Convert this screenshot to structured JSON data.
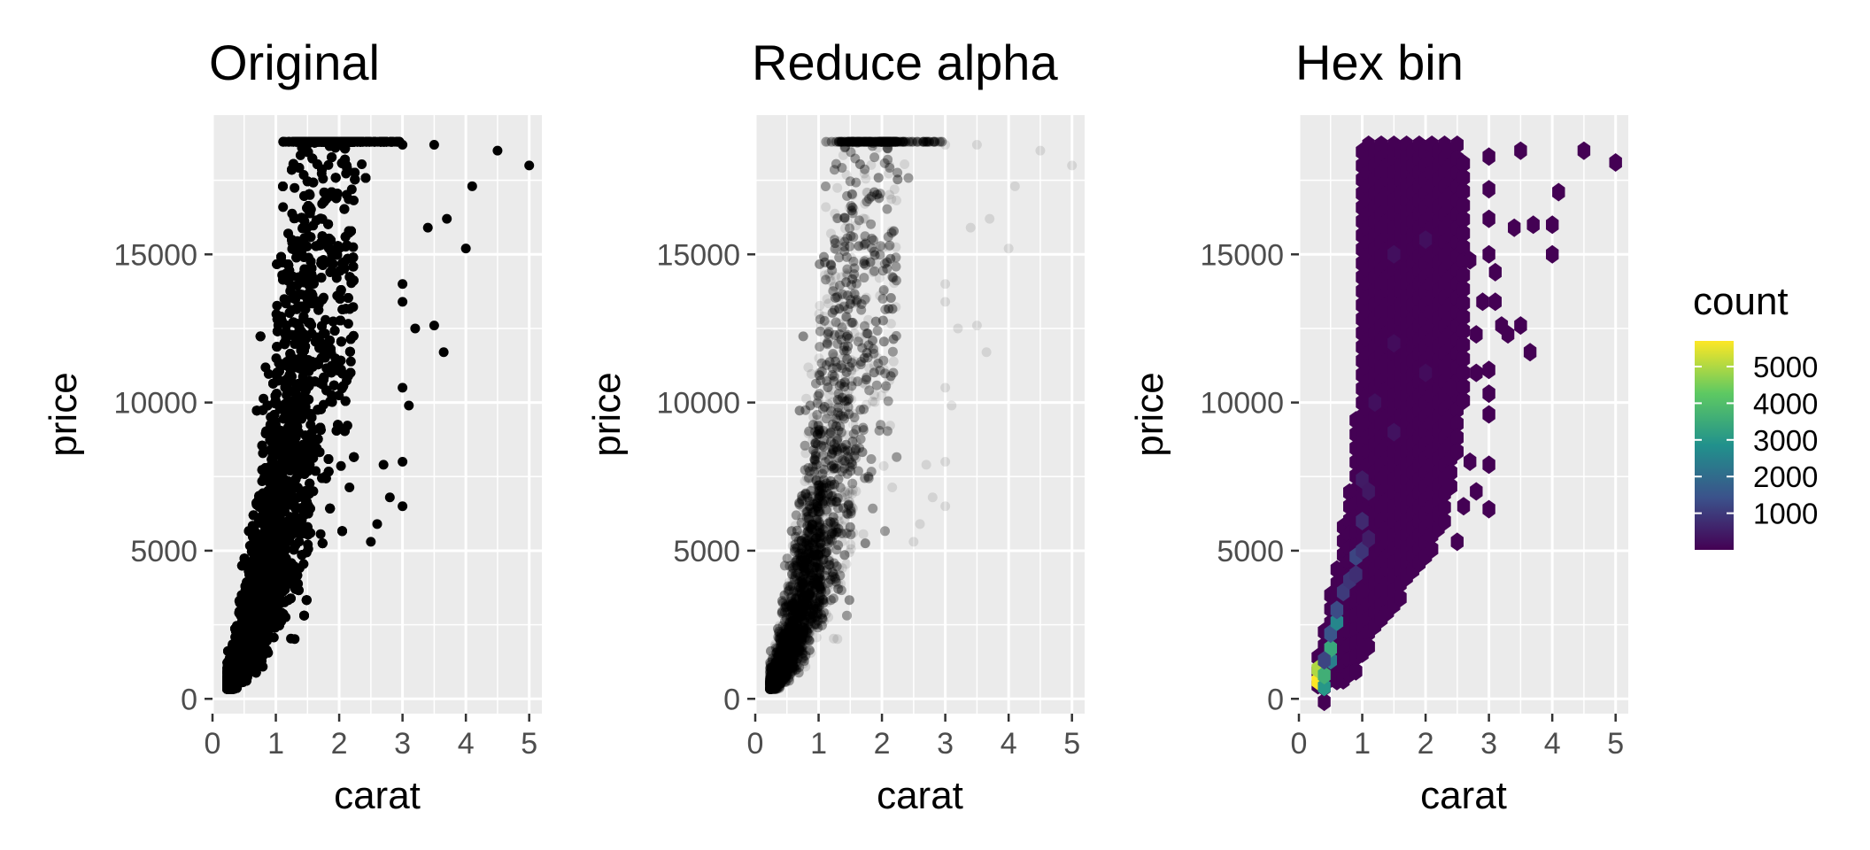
{
  "chart_data": [
    {
      "type": "scatter",
      "title": "Original",
      "xlabel": "carat",
      "ylabel": "price",
      "xlim": [
        0,
        5.2
      ],
      "ylim": [
        -500,
        19700
      ],
      "xticks": [
        0,
        1,
        2,
        3,
        4,
        5
      ],
      "yticks": [
        0,
        5000,
        10000,
        15000
      ],
      "grid": true,
      "point_color": "#000000",
      "point_alpha": 1.0,
      "outliers": [
        {
          "x": 3.0,
          "y": 18700
        },
        {
          "x": 3.5,
          "y": 18700
        },
        {
          "x": 4.5,
          "y": 18500
        },
        {
          "x": 5.0,
          "y": 18000
        },
        {
          "x": 4.1,
          "y": 17300
        },
        {
          "x": 3.7,
          "y": 16200
        },
        {
          "x": 3.4,
          "y": 15900
        },
        {
          "x": 4.0,
          "y": 15200
        },
        {
          "x": 3.0,
          "y": 14000
        },
        {
          "x": 3.0,
          "y": 13400
        },
        {
          "x": 3.2,
          "y": 12500
        },
        {
          "x": 3.5,
          "y": 12600
        },
        {
          "x": 3.65,
          "y": 11700
        },
        {
          "x": 3.0,
          "y": 10500
        },
        {
          "x": 3.1,
          "y": 9900
        },
        {
          "x": 3.0,
          "y": 8000
        },
        {
          "x": 2.7,
          "y": 7900
        },
        {
          "x": 2.8,
          "y": 6800
        },
        {
          "x": 3.0,
          "y": 6500
        },
        {
          "x": 2.6,
          "y": 5900
        },
        {
          "x": 2.5,
          "y": 5300
        }
      ]
    },
    {
      "type": "scatter",
      "title": "Reduce alpha",
      "xlabel": "carat",
      "ylabel": "price",
      "xlim": [
        0,
        5.2
      ],
      "ylim": [
        -500,
        19700
      ],
      "xticks": [
        0,
        1,
        2,
        3,
        4,
        5
      ],
      "yticks": [
        0,
        5000,
        10000,
        15000
      ],
      "grid": true,
      "point_color": "#000000",
      "point_alpha": 0.1
    },
    {
      "type": "heatmap",
      "title": "Hex bin",
      "xlabel": "carat",
      "ylabel": "price",
      "xlim": [
        0,
        5.2
      ],
      "ylim": [
        -500,
        19700
      ],
      "xticks": [
        0,
        1,
        2,
        3,
        4,
        5
      ],
      "yticks": [
        0,
        5000,
        10000,
        15000
      ],
      "grid": true,
      "legend": {
        "title": "count",
        "position": "right",
        "min": 1,
        "max": 5700,
        "ticks": [
          1000,
          2000,
          3000,
          4000,
          5000
        ],
        "palette": [
          "#440154",
          "#3b528b",
          "#21918c",
          "#5ec962",
          "#fde725"
        ]
      },
      "hex_columns": [
        {
          "x": 0.3,
          "ymin": 100,
          "ymax": 1400
        },
        {
          "x": 0.4,
          "ymin": 0,
          "ymax": 2500
        },
        {
          "x": 0.5,
          "ymin": 300,
          "ymax": 3500
        },
        {
          "x": 0.6,
          "ymin": 400,
          "ymax": 4600
        },
        {
          "x": 0.7,
          "ymin": 500,
          "ymax": 5800
        },
        {
          "x": 0.8,
          "ymin": 700,
          "ymax": 7200
        },
        {
          "x": 0.9,
          "ymin": 900,
          "ymax": 9400
        },
        {
          "x": 1.0,
          "ymin": 1300,
          "ymax": 18700
        },
        {
          "x": 1.1,
          "ymin": 1600,
          "ymax": 18700
        },
        {
          "x": 1.2,
          "ymin": 2000,
          "ymax": 18700
        },
        {
          "x": 1.3,
          "ymin": 2300,
          "ymax": 18700
        },
        {
          "x": 1.4,
          "ymin": 2700,
          "ymax": 18700
        },
        {
          "x": 1.5,
          "ymin": 3000,
          "ymax": 18700
        },
        {
          "x": 1.6,
          "ymin": 3300,
          "ymax": 18700
        },
        {
          "x": 1.7,
          "ymin": 3700,
          "ymax": 18700
        },
        {
          "x": 1.8,
          "ymin": 4000,
          "ymax": 18700
        },
        {
          "x": 1.9,
          "ymin": 4300,
          "ymax": 18700
        },
        {
          "x": 2.0,
          "ymin": 4700,
          "ymax": 18700
        },
        {
          "x": 2.1,
          "ymin": 5000,
          "ymax": 18700
        },
        {
          "x": 2.2,
          "ymin": 5300,
          "ymax": 18700
        },
        {
          "x": 2.3,
          "ymin": 5800,
          "ymax": 18700
        },
        {
          "x": 2.4,
          "ymin": 6800,
          "ymax": 18700
        },
        {
          "x": 2.5,
          "ymin": 8000,
          "ymax": 18700
        },
        {
          "x": 2.6,
          "ymin": 9800,
          "ymax": 18300
        }
      ],
      "hex_points": [
        {
          "x": 2.5,
          "y": 5300
        },
        {
          "x": 2.6,
          "y": 6500
        },
        {
          "x": 2.8,
          "y": 7000
        },
        {
          "x": 2.7,
          "y": 8000
        },
        {
          "x": 3.0,
          "y": 7900
        },
        {
          "x": 3.0,
          "y": 6400
        },
        {
          "x": 2.4,
          "y": 10500
        },
        {
          "x": 2.8,
          "y": 11000
        },
        {
          "x": 3.0,
          "y": 9600
        },
        {
          "x": 2.7,
          "y": 14800
        },
        {
          "x": 2.8,
          "y": 12300
        },
        {
          "x": 3.0,
          "y": 10300
        },
        {
          "x": 3.0,
          "y": 11100
        },
        {
          "x": 2.9,
          "y": 13400
        },
        {
          "x": 3.1,
          "y": 13400
        },
        {
          "x": 3.2,
          "y": 12600
        },
        {
          "x": 3.3,
          "y": 12300
        },
        {
          "x": 3.5,
          "y": 12600
        },
        {
          "x": 3.65,
          "y": 11700
        },
        {
          "x": 3.0,
          "y": 15000
        },
        {
          "x": 3.1,
          "y": 14400
        },
        {
          "x": 3.0,
          "y": 16200
        },
        {
          "x": 3.4,
          "y": 15900
        },
        {
          "x": 3.7,
          "y": 16000
        },
        {
          "x": 4.0,
          "y": 16000
        },
        {
          "x": 4.0,
          "y": 15000
        },
        {
          "x": 4.1,
          "y": 17100
        },
        {
          "x": 3.0,
          "y": 18300
        },
        {
          "x": 3.5,
          "y": 18500
        },
        {
          "x": 4.5,
          "y": 18500
        },
        {
          "x": 5.0,
          "y": 18100
        },
        {
          "x": 3.0,
          "y": 17200
        },
        {
          "x": 0.4,
          "y": -100
        }
      ],
      "hex_hot": [
        {
          "x": 0.3,
          "y": 600,
          "count": 5700
        },
        {
          "x": 0.3,
          "y": 1000,
          "count": 5000
        },
        {
          "x": 0.4,
          "y": 400,
          "count": 3000
        },
        {
          "x": 0.4,
          "y": 800,
          "count": 3600
        },
        {
          "x": 0.5,
          "y": 1300,
          "count": 2400
        },
        {
          "x": 0.5,
          "y": 1700,
          "count": 3400
        },
        {
          "x": 0.5,
          "y": 2200,
          "count": 1500
        },
        {
          "x": 0.6,
          "y": 2600,
          "count": 2600
        },
        {
          "x": 0.6,
          "y": 3000,
          "count": 1300
        },
        {
          "x": 0.4,
          "y": 1300,
          "count": 1200
        },
        {
          "x": 0.7,
          "y": 3600,
          "count": 1000
        },
        {
          "x": 0.9,
          "y": 4800,
          "count": 1200
        },
        {
          "x": 0.8,
          "y": 4000,
          "count": 900
        },
        {
          "x": 0.9,
          "y": 4200,
          "count": 800
        },
        {
          "x": 1.0,
          "y": 5000,
          "count": 900
        },
        {
          "x": 1.0,
          "y": 6000,
          "count": 700
        },
        {
          "x": 1.1,
          "y": 5400,
          "count": 500
        },
        {
          "x": 1.0,
          "y": 7400,
          "count": 450
        },
        {
          "x": 1.1,
          "y": 7000,
          "count": 400
        },
        {
          "x": 1.5,
          "y": 9000,
          "count": 300
        },
        {
          "x": 1.5,
          "y": 15000,
          "count": 250
        },
        {
          "x": 2.0,
          "y": 15500,
          "count": 250
        },
        {
          "x": 2.0,
          "y": 11000,
          "count": 200
        },
        {
          "x": 1.5,
          "y": 12000,
          "count": 200
        },
        {
          "x": 1.2,
          "y": 10000,
          "count": 250
        }
      ]
    }
  ]
}
